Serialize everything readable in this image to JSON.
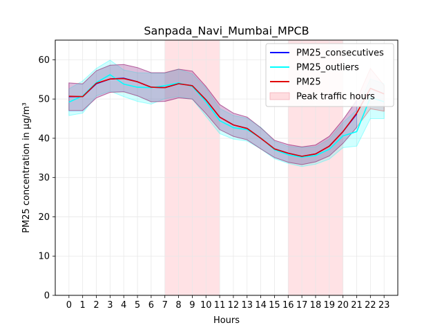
{
  "chart_data": {
    "type": "line",
    "title": "Sanpada_Navi_Mumbai_MPCB",
    "xlabel": "Hours",
    "ylabel": "PM25 concentration in µg/m³",
    "xlim": [
      -1,
      24
    ],
    "ylim": [
      0,
      65
    ],
    "x_ticks": [
      0,
      1,
      2,
      3,
      4,
      5,
      6,
      7,
      8,
      9,
      10,
      11,
      12,
      13,
      14,
      15,
      16,
      17,
      18,
      19,
      20,
      21,
      22,
      23
    ],
    "y_ticks": [
      0,
      10,
      20,
      30,
      40,
      50,
      60
    ],
    "grid": true,
    "legend_position": "top-right",
    "x": [
      0,
      1,
      2,
      3,
      4,
      5,
      6,
      7,
      8,
      9,
      10,
      11,
      12,
      13,
      14,
      15,
      16,
      17,
      18,
      19,
      20,
      21,
      22,
      23
    ],
    "peak_traffic_hours": [
      [
        7,
        11
      ],
      [
        16,
        20
      ]
    ],
    "series": [
      {
        "name": "PM25_consecutives",
        "color": "#0000ff",
        "values": [
          50.6,
          50.6,
          53.9,
          55.1,
          55.3,
          54.4,
          53.0,
          52.9,
          53.9,
          53.4,
          49.8,
          45.4,
          43.4,
          42.5,
          40.0,
          37.3,
          36.2,
          35.4,
          36.0,
          38.0,
          41.7,
          46.2,
          null,
          null
        ],
        "band_lower": [
          47.0,
          47.0,
          50.3,
          51.7,
          51.9,
          50.8,
          49.3,
          49.4,
          50.3,
          50.0,
          46.3,
          42.2,
          40.5,
          39.6,
          37.3,
          35.1,
          33.9,
          33.3,
          34.0,
          35.5,
          38.7,
          42.7,
          null,
          null
        ],
        "band_upper": [
          54.1,
          53.8,
          57.2,
          58.6,
          58.8,
          58.0,
          56.7,
          56.7,
          57.6,
          57.1,
          53.2,
          48.6,
          46.4,
          45.4,
          42.7,
          39.5,
          38.4,
          37.8,
          38.3,
          40.5,
          44.7,
          49.5,
          null,
          null
        ]
      },
      {
        "name": "PM25_outliers",
        "color": "#00ffff",
        "values": [
          49.2,
          50.8,
          54.2,
          56.2,
          53.8,
          53.0,
          52.9,
          53.4,
          54.1,
          53.2,
          49.3,
          44.5,
          42.7,
          42.2,
          40.1,
          37.1,
          35.8,
          35.2,
          35.6,
          37.2,
          40.6,
          41.7,
          50.4,
          49.3
        ],
        "band_lower": [
          45.8,
          46.4,
          50.8,
          52.0,
          50.6,
          49.4,
          48.7,
          50.1,
          50.6,
          50.0,
          45.6,
          41.2,
          39.8,
          39.3,
          37.3,
          34.8,
          33.6,
          32.8,
          33.4,
          34.7,
          37.6,
          38.0,
          45.0,
          45.0
        ],
        "band_upper": [
          52.6,
          54.6,
          57.8,
          59.9,
          57.4,
          56.7,
          56.6,
          56.6,
          57.6,
          56.4,
          52.8,
          47.6,
          45.8,
          45.1,
          42.8,
          39.2,
          37.9,
          37.7,
          37.8,
          39.8,
          44.0,
          47.2,
          55.1,
          53.9
        ]
      },
      {
        "name": "PM25",
        "color": "#e00000",
        "values": [
          50.7,
          50.6,
          54.0,
          55.1,
          55.2,
          54.4,
          53.0,
          52.9,
          53.9,
          53.4,
          49.8,
          45.4,
          43.4,
          42.5,
          40.0,
          37.3,
          36.2,
          35.4,
          36.0,
          38.0,
          41.7,
          46.4,
          52.7,
          51.3
        ],
        "band_lower": [
          47.1,
          47.1,
          50.3,
          51.7,
          51.8,
          50.8,
          49.3,
          49.4,
          50.3,
          50.0,
          46.3,
          42.2,
          40.5,
          39.6,
          37.3,
          35.1,
          33.9,
          33.3,
          34.0,
          35.5,
          38.7,
          42.8,
          47.5,
          46.9
        ],
        "band_upper": [
          54.1,
          53.9,
          57.2,
          58.6,
          58.8,
          58.0,
          56.7,
          56.7,
          57.6,
          57.1,
          53.2,
          48.6,
          46.4,
          45.4,
          42.7,
          39.5,
          38.4,
          37.8,
          38.3,
          40.5,
          44.7,
          49.8,
          57.8,
          53.5
        ]
      }
    ],
    "legend": [
      {
        "label": "PM25_consecutives",
        "kind": "line",
        "color": "#0000ff"
      },
      {
        "label": "PM25_outliers",
        "kind": "line",
        "color": "#00ffff"
      },
      {
        "label": "PM25",
        "kind": "line",
        "color": "#e00000"
      },
      {
        "label": "Peak traffic hours",
        "kind": "patch",
        "color": "#ffdde0"
      }
    ]
  }
}
